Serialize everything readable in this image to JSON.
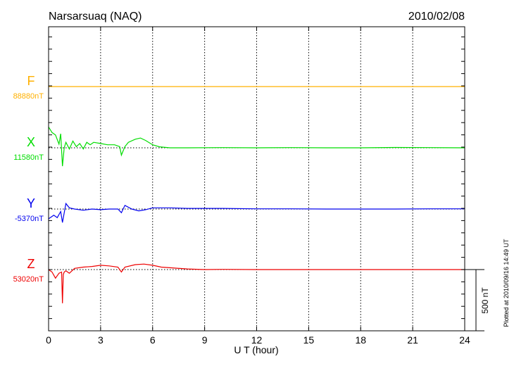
{
  "chart_data": {
    "type": "line",
    "title": "Narsarsuaq (NAQ)",
    "date": "2010/02/08",
    "xlabel": "U T (hour)",
    "xlim": [
      0,
      24
    ],
    "xticks": [
      "0",
      "3",
      "6",
      "9",
      "12",
      "15",
      "18",
      "21",
      "24"
    ],
    "scale_label": "500 nT",
    "scale_nT": 500,
    "plotted_note": "Plotted at 2010/09/16 14:49 UT",
    "series": [
      {
        "name": "F",
        "baseline_label": "88880nT",
        "color": "#ffb000",
        "x": [
          0,
          24
        ],
        "y": [
          0,
          0
        ]
      },
      {
        "name": "X",
        "baseline_label": "11580nT",
        "color": "#00dd00",
        "x": [
          0,
          0.2,
          0.4,
          0.6,
          0.7,
          0.8,
          0.9,
          1.0,
          1.2,
          1.4,
          1.6,
          1.8,
          2.0,
          2.2,
          2.4,
          2.6,
          3.0,
          3.4,
          3.8,
          4.1,
          4.2,
          4.4,
          4.6,
          5.0,
          5.3,
          5.6,
          6.0,
          6.4,
          7,
          8,
          10,
          12,
          14,
          16,
          18,
          20,
          22,
          24
        ],
        "y": [
          170,
          125,
          105,
          30,
          115,
          -150,
          0,
          45,
          -10,
          55,
          10,
          35,
          -10,
          45,
          25,
          45,
          35,
          25,
          25,
          10,
          -60,
          10,
          45,
          70,
          80,
          60,
          25,
          8,
          0,
          0,
          2,
          0,
          2,
          0,
          0,
          3,
          2,
          0
        ]
      },
      {
        "name": "Y",
        "baseline_label": "-5370nT",
        "color": "#0000ee",
        "x": [
          0,
          0.3,
          0.5,
          0.7,
          0.8,
          1.0,
          1.2,
          1.5,
          2.0,
          2.5,
          3.0,
          3.5,
          4.0,
          4.2,
          4.4,
          4.8,
          5.2,
          5.6,
          6,
          7,
          8,
          10,
          12,
          14,
          16,
          18,
          20,
          22,
          24
        ],
        "y": [
          -80,
          -50,
          -70,
          -20,
          -110,
          45,
          10,
          0,
          -10,
          0,
          -5,
          0,
          0,
          -30,
          30,
          0,
          -15,
          -5,
          10,
          10,
          5,
          5,
          2,
          2,
          0,
          0,
          0,
          2,
          2
        ]
      },
      {
        "name": "Z",
        "baseline_label": "53020nT",
        "color": "#ee0000",
        "x": [
          0,
          0.2,
          0.4,
          0.6,
          0.75,
          0.8,
          0.85,
          0.9,
          1.0,
          1.2,
          1.5,
          2.0,
          2.5,
          3.0,
          3.5,
          4.0,
          4.2,
          4.4,
          5.0,
          5.5,
          6.0,
          6.5,
          7,
          8,
          9,
          10,
          12,
          16,
          20,
          24
        ],
        "y": [
          0,
          -20,
          -70,
          -30,
          -20,
          -275,
          -40,
          -20,
          -10,
          -30,
          10,
          20,
          25,
          35,
          30,
          20,
          -20,
          20,
          40,
          45,
          35,
          20,
          15,
          5,
          0,
          2,
          0,
          0,
          0,
          0
        ]
      }
    ]
  }
}
